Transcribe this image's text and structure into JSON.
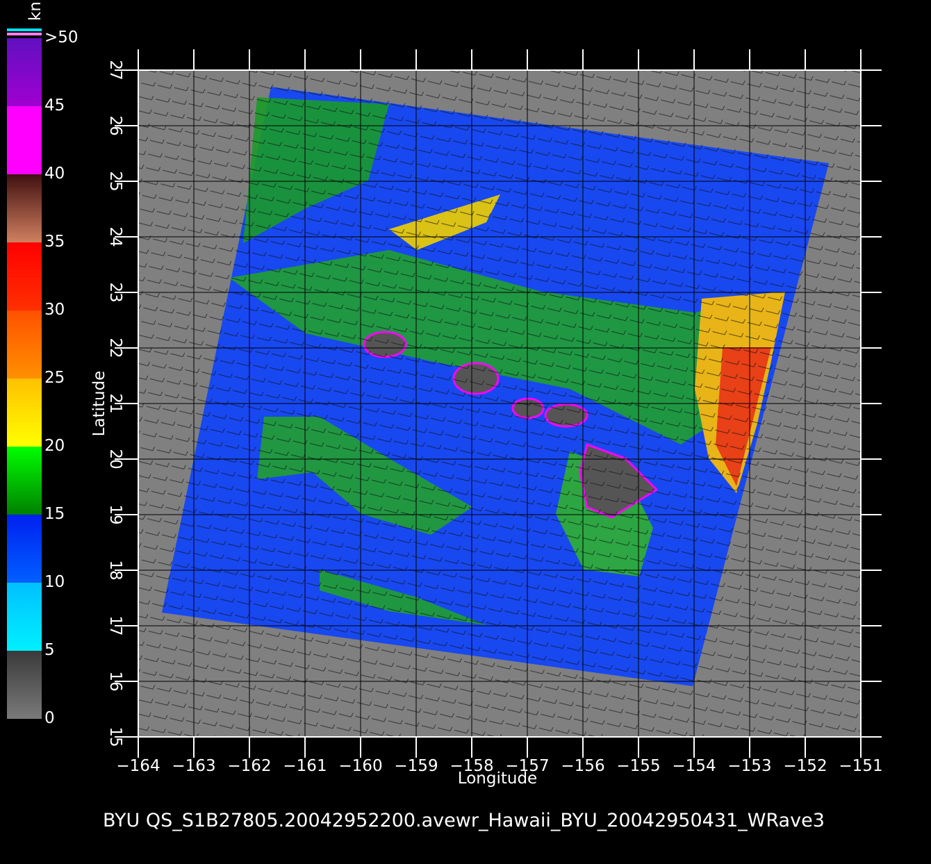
{
  "chart_data": {
    "type": "map",
    "xlabel": "Longitude",
    "ylabel": "Latitude",
    "footer": "BYU  QS_S1B27805.20042952200.avewr_Hawaii_BYU_20042950431_WRave3",
    "xlim": [
      -164,
      -151
    ],
    "ylim": [
      15,
      27
    ],
    "xticks": [
      {
        "value": -164,
        "label": "−164"
      },
      {
        "value": -163,
        "label": "−163"
      },
      {
        "value": -162,
        "label": "−162"
      },
      {
        "value": -161,
        "label": "−161"
      },
      {
        "value": -160,
        "label": "−160"
      },
      {
        "value": -159,
        "label": "−159"
      },
      {
        "value": -158,
        "label": "−158"
      },
      {
        "value": -157,
        "label": "−157"
      },
      {
        "value": -156,
        "label": "−156"
      },
      {
        "value": -155,
        "label": "−155"
      },
      {
        "value": -154,
        "label": "−154"
      },
      {
        "value": -153,
        "label": "−153"
      },
      {
        "value": -152,
        "label": "−152"
      },
      {
        "value": -151,
        "label": "−151"
      }
    ],
    "yticks": [
      15,
      16,
      17,
      18,
      19,
      20,
      21,
      22,
      23,
      24,
      25,
      26,
      27
    ],
    "grid": true,
    "colorbar": {
      "title": "kn",
      "lim": [
        0,
        50
      ],
      "ticks": [
        0,
        5,
        10,
        15,
        20,
        25,
        30,
        35,
        40,
        45,
        {
          "value": 50,
          "label": ">50"
        }
      ],
      "colors": [
        [
          "#7a7a7a",
          "#3a3a3a"
        ],
        [
          "#00f0ff",
          "#00c0ff"
        ],
        [
          "#0060ff",
          "#0020f0"
        ],
        [
          "#008000",
          "#00ff00"
        ],
        [
          "#ffff00",
          "#ffc000"
        ],
        [
          "#ff9000",
          "#ff5000"
        ],
        [
          "#ff3000",
          "#ff0000"
        ],
        [
          "#d08060",
          "#401010"
        ],
        [
          "#ff00ff",
          "#ff00ff"
        ],
        [
          "#a000d0",
          "#6010c0"
        ]
      ]
    }
  }
}
